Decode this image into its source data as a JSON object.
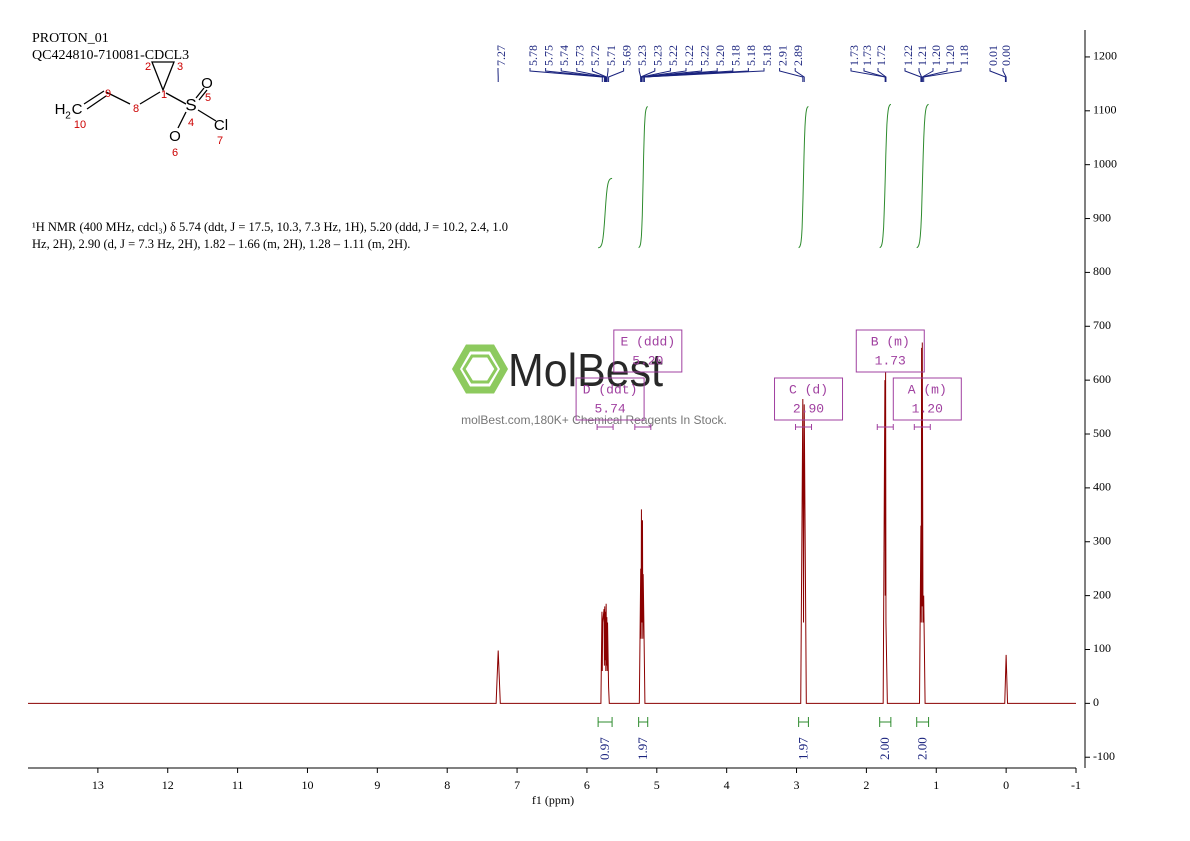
{
  "chart_data": {
    "type": "line",
    "title": "PROTON_01",
    "subtitle": "QC424810-710081-CDCL3",
    "x_label": "f1 (ppm)",
    "description": [
      "¹H NMR (400 MHz, cdcl₃) δ 5.74 (ddt, J = 17.5, 10.3, 7.3 Hz, 1H), 5.20 (ddd, J = 10.2, 2.4, 1.0",
      "Hz, 2H), 2.90 (d, J = 7.3 Hz, 2H), 1.82 – 1.66 (m, 2H), 1.28 – 1.11 (m, 2H)."
    ],
    "color": "#8b0000",
    "x": [
      14,
      7.3,
      7.27,
      7.24,
      5.8,
      5.785,
      5.78,
      5.775,
      5.755,
      5.75,
      5.745,
      5.74,
      5.735,
      5.73,
      5.725,
      5.72,
      5.715,
      5.71,
      5.705,
      5.69,
      5.68,
      5.25,
      5.23,
      5.225,
      5.22,
      5.215,
      5.205,
      5.2,
      5.195,
      5.185,
      5.18,
      5.17,
      2.94,
      2.91,
      2.9,
      2.89,
      2.86,
      1.76,
      1.735,
      1.73,
      1.725,
      1.72,
      1.7,
      1.24,
      1.22,
      1.215,
      1.21,
      1.205,
      1.2,
      1.19,
      1.18,
      1.16,
      0.02,
      0.0,
      -0.02,
      -1
    ],
    "values": [
      0,
      0,
      98,
      0,
      0,
      170,
      60,
      150,
      175,
      70,
      180,
      80,
      170,
      60,
      185,
      70,
      160,
      60,
      150,
      30,
      0,
      0,
      250,
      120,
      360,
      150,
      340,
      120,
      240,
      150,
      100,
      0,
      0,
      565,
      150,
      555,
      0,
      0,
      600,
      200,
      615,
      150,
      0,
      0,
      330,
      150,
      660,
      180,
      670,
      150,
      200,
      0,
      0,
      90,
      0,
      0
    ],
    "xlim": [
      14,
      -1
    ],
    "xticks": [
      13,
      12,
      11,
      10,
      9,
      8,
      7,
      6,
      5,
      4,
      3,
      2,
      1,
      0,
      -1
    ],
    "ylim": [
      -120,
      1250
    ],
    "yticks": [
      -100,
      0,
      100,
      200,
      300,
      400,
      500,
      600,
      700,
      800,
      900,
      1000,
      1100,
      1200
    ],
    "peak_labels": [
      7.27,
      5.78,
      5.75,
      5.74,
      5.73,
      5.72,
      5.71,
      5.69,
      5.23,
      5.23,
      5.22,
      5.22,
      5.22,
      {
        "value": 5.2,
        "label": "5.20"
      },
      5.18,
      5.18,
      5.18,
      2.91,
      2.89,
      1.73,
      1.73,
      1.72,
      1.22,
      1.21,
      {
        "value": 1.2,
        "label": "1.20"
      },
      {
        "value": 1.2,
        "label": "1.20"
      },
      1.18,
      0.01,
      {
        "value": 0,
        "label": "0.00"
      }
    ],
    "multiplets": [
      {
        "name": "E (ddd)",
        "shift": {
          "value": 5.2,
          "label": "5.20"
        }
      },
      {
        "name": "D (ddt)",
        "shift": 5.74
      },
      {
        "name": "C (d)",
        "shift": {
          "value": 2.9,
          "label": "2.90"
        }
      },
      {
        "name": "B (m)",
        "shift": 1.73
      },
      {
        "name": "A (m)",
        "shift": {
          "value": 1.2,
          "label": "1.20"
        }
      }
    ],
    "integrals": [
      {
        "value": 0.97,
        "range": [
          5.84,
          5.64
        ]
      },
      {
        "value": 1.97,
        "range": [
          5.26,
          5.13
        ]
      },
      {
        "value": 1.97,
        "range": [
          2.97,
          2.83
        ]
      },
      {
        "value": 2.0,
        "label": "2.00",
        "range": [
          1.81,
          1.65
        ]
      },
      {
        "value": 2.0,
        "label": "2.00",
        "range": [
          1.28,
          1.11
        ]
      }
    ]
  },
  "structure": {
    "labels": [
      "H",
      "2",
      "C",
      "10",
      "9",
      "8",
      "1",
      "2",
      "3",
      "S",
      "4",
      "O",
      "5",
      "O",
      "6",
      "Cl",
      "7"
    ]
  },
  "watermark": {
    "brand": "MolBest",
    "tagline": "molBest.com,180K+ Chemical Reagents In Stock."
  }
}
